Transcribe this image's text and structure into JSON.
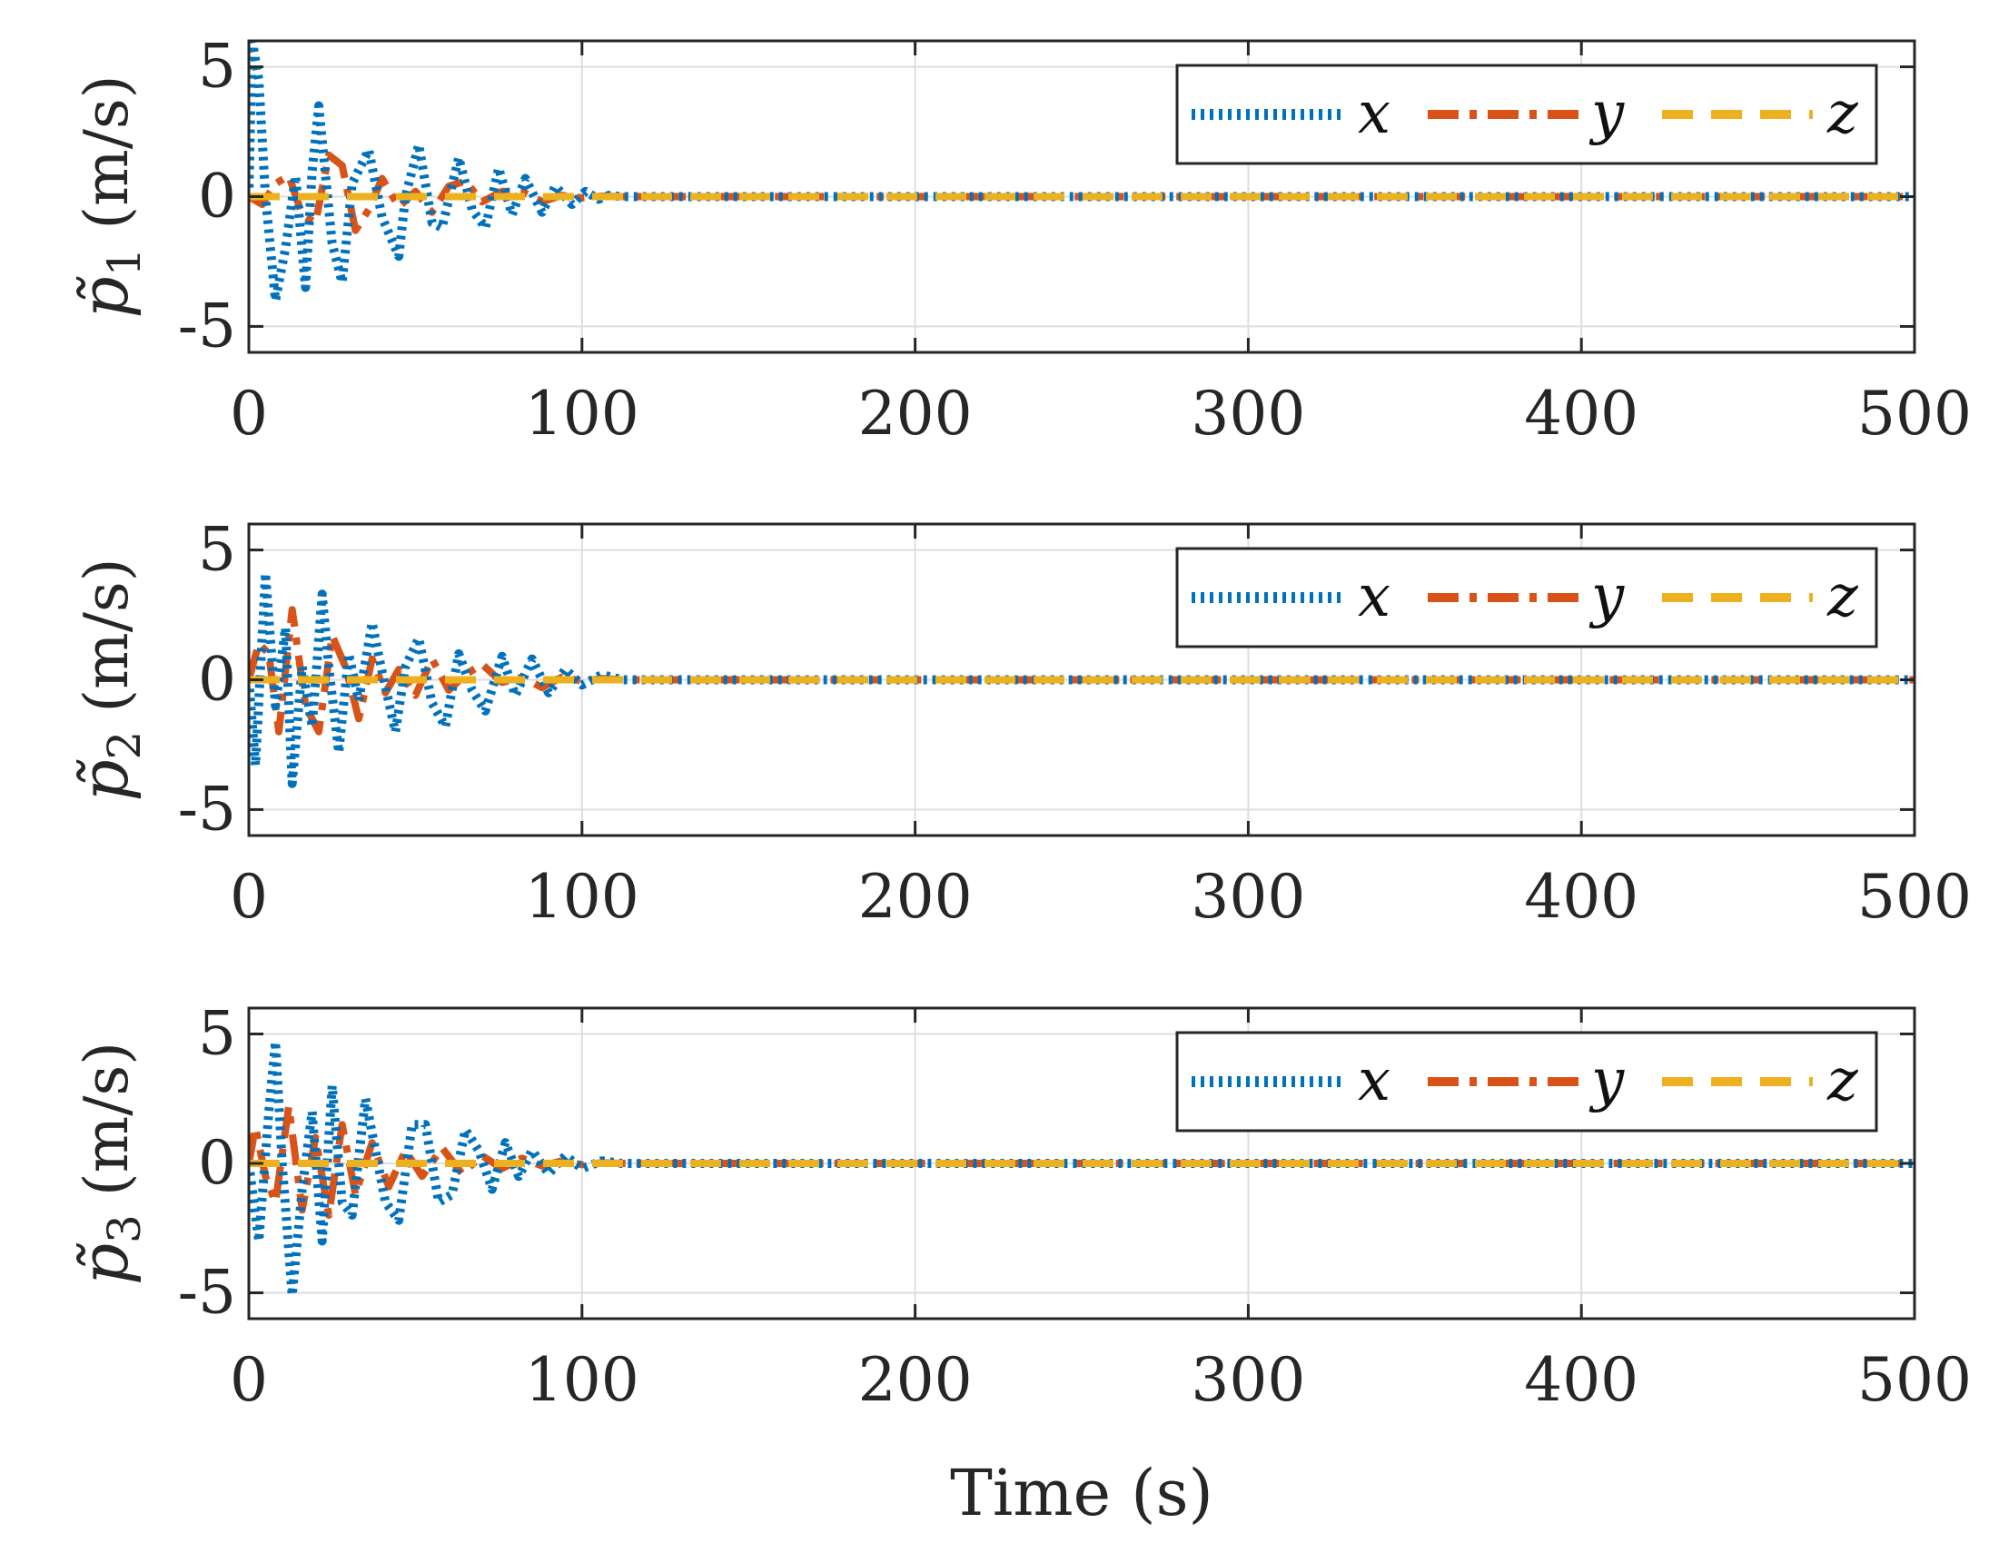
{
  "chart_data": [
    {
      "type": "line",
      "ylabel_var": "p̃",
      "ylabel_sub": "1",
      "ylabel_unit": "(m/s)",
      "xlabel": "",
      "xlim": [
        0,
        500
      ],
      "ylim": [
        -6,
        6
      ],
      "xticks": [
        "0",
        "100",
        "200",
        "300",
        "400",
        "500"
      ],
      "yticks": [
        "5",
        "0",
        "-5"
      ],
      "legend": [
        "x",
        "y",
        "z"
      ],
      "legend_position": "top-right",
      "grid": true,
      "series": [
        {
          "name": "x",
          "color": "#0072BD",
          "style": "dotted",
          "x": [
            0,
            1,
            3,
            5,
            8,
            11,
            14,
            17,
            19,
            21,
            25,
            28,
            31,
            36,
            40,
            45,
            47,
            51,
            55,
            58,
            63,
            67,
            71,
            75,
            79,
            83,
            88,
            92,
            97,
            101,
            105,
            108,
            112,
            500
          ],
          "y": [
            0,
            6,
            4.5,
            0,
            -4,
            -2,
            0.8,
            -3.5,
            1,
            3.5,
            -1.8,
            -3.3,
            0.5,
            1.8,
            -0.8,
            -2.3,
            0,
            2.0,
            -1.0,
            -1.2,
            1.5,
            -0.5,
            -1.2,
            1.1,
            -0.7,
            0.7,
            -0.6,
            0.4,
            -0.3,
            0.2,
            -0.1,
            0.05,
            0,
            0
          ]
        },
        {
          "name": "y",
          "color": "#D95319",
          "style": "dashdot",
          "x": [
            0,
            4,
            8,
            12,
            16,
            20,
            24,
            28,
            32,
            36,
            40,
            45,
            50,
            55,
            60,
            65,
            70,
            76,
            82,
            88,
            94,
            100,
            106,
            112,
            500
          ],
          "y": [
            0,
            -0.3,
            0.5,
            0.8,
            -0.7,
            -1.0,
            1.6,
            1.2,
            -1.3,
            -0.5,
            0.7,
            -0.4,
            0.2,
            -0.6,
            0.4,
            0.6,
            -0.2,
            0.2,
            0.2,
            -0.2,
            0.05,
            -0.05,
            0.02,
            0,
            0
          ]
        },
        {
          "name": "z",
          "color": "#EDB120",
          "style": "dashed",
          "x": [
            0,
            30,
            60,
            90,
            120,
            500
          ],
          "y": [
            0,
            0,
            0,
            0,
            0,
            0
          ]
        }
      ]
    },
    {
      "type": "line",
      "ylabel_var": "p̃",
      "ylabel_sub": "2",
      "ylabel_unit": "(m/s)",
      "xlabel": "",
      "xlim": [
        0,
        500
      ],
      "ylim": [
        -6,
        6
      ],
      "xticks": [
        "0",
        "100",
        "200",
        "300",
        "400",
        "500"
      ],
      "yticks": [
        "5",
        "0",
        "-5"
      ],
      "legend": [
        "x",
        "y",
        "z"
      ],
      "legend_position": "top-right",
      "grid": true,
      "series": [
        {
          "name": "x",
          "color": "#0072BD",
          "style": "dotted",
          "x": [
            0,
            2,
            5,
            8,
            11,
            13,
            16,
            19,
            22,
            24,
            27,
            30,
            33,
            37,
            40,
            44,
            47,
            51,
            55,
            59,
            63,
            67,
            71,
            76,
            80,
            85,
            90,
            95,
            100,
            106,
            112,
            500
          ],
          "y": [
            0,
            -3.3,
            4.1,
            -1.0,
            2.0,
            -4.0,
            0.5,
            -1.8,
            3.3,
            0.5,
            -2.8,
            1.0,
            -0.8,
            2.2,
            0.3,
            -2.0,
            0.5,
            1.6,
            -0.9,
            -1.8,
            1.0,
            -0.4,
            -1.2,
            0.9,
            -0.6,
            0.8,
            -0.5,
            0.4,
            -0.2,
            0.2,
            0,
            0
          ]
        },
        {
          "name": "y",
          "color": "#D95319",
          "style": "dashdot",
          "x": [
            0,
            3,
            6,
            9,
            13,
            17,
            21,
            25,
            29,
            33,
            37,
            41,
            45,
            50,
            55,
            60,
            65,
            70,
            76,
            82,
            88,
            94,
            100,
            106,
            112,
            500
          ],
          "y": [
            0,
            1.4,
            1.0,
            -2.0,
            2.7,
            -1.0,
            -2.0,
            1.7,
            0.5,
            -1.5,
            0.8,
            -0.5,
            0.4,
            -0.6,
            0.8,
            -0.4,
            0.2,
            0.6,
            -0.1,
            0.1,
            -0.3,
            0.1,
            -0.05,
            0.05,
            0,
            0
          ]
        },
        {
          "name": "z",
          "color": "#EDB120",
          "style": "dashed",
          "x": [
            0,
            30,
            60,
            90,
            120,
            500
          ],
          "y": [
            0,
            0,
            0,
            0,
            0,
            0
          ]
        }
      ]
    },
    {
      "type": "line",
      "ylabel_var": "p̃",
      "ylabel_sub": "3",
      "ylabel_unit": "(m/s)",
      "xlabel": "Time (s)",
      "xlim": [
        0,
        500
      ],
      "ylim": [
        -6,
        6
      ],
      "xticks": [
        "0",
        "100",
        "200",
        "300",
        "400",
        "500"
      ],
      "yticks": [
        "5",
        "0",
        "-5"
      ],
      "legend": [
        "x",
        "y",
        "z"
      ],
      "legend_position": "top-right",
      "grid": true,
      "series": [
        {
          "name": "x",
          "color": "#0072BD",
          "style": "dotted",
          "x": [
            0,
            3,
            6,
            8,
            10,
            13,
            16,
            19,
            22,
            25,
            28,
            31,
            35,
            38,
            41,
            45,
            49,
            53,
            57,
            61,
            65,
            69,
            73,
            77,
            81,
            85,
            90,
            95,
            100,
            106,
            112,
            500
          ],
          "y": [
            0,
            -3.0,
            2.0,
            4.7,
            0,
            -5.1,
            -1.0,
            2.0,
            -3.0,
            3.0,
            -1.5,
            -2.0,
            2.5,
            0.5,
            -1.5,
            -2.2,
            1.5,
            1.5,
            -1.5,
            -1.2,
            1.3,
            0.5,
            -1.0,
            0.8,
            -0.5,
            0.5,
            -0.4,
            0.3,
            -0.2,
            0.1,
            0,
            0
          ]
        },
        {
          "name": "y",
          "color": "#D95319",
          "style": "dashdot",
          "x": [
            0,
            2,
            5,
            8,
            12,
            16,
            20,
            24,
            28,
            32,
            37,
            42,
            47,
            52,
            58,
            64,
            70,
            76,
            82,
            88,
            94,
            100,
            106,
            112,
            500
          ],
          "y": [
            0,
            1.4,
            -0.5,
            -1.5,
            2.2,
            -1.8,
            1.0,
            -2.0,
            1.5,
            -1.2,
            0.8,
            -0.9,
            0.5,
            -0.5,
            0.6,
            -0.4,
            0.3,
            -0.2,
            0.2,
            -0.1,
            0.1,
            -0.05,
            0.02,
            0,
            0
          ]
        },
        {
          "name": "z",
          "color": "#EDB120",
          "style": "dashed",
          "x": [
            0,
            30,
            60,
            90,
            120,
            500
          ],
          "y": [
            0,
            0,
            0,
            0,
            0,
            0
          ]
        }
      ]
    }
  ]
}
